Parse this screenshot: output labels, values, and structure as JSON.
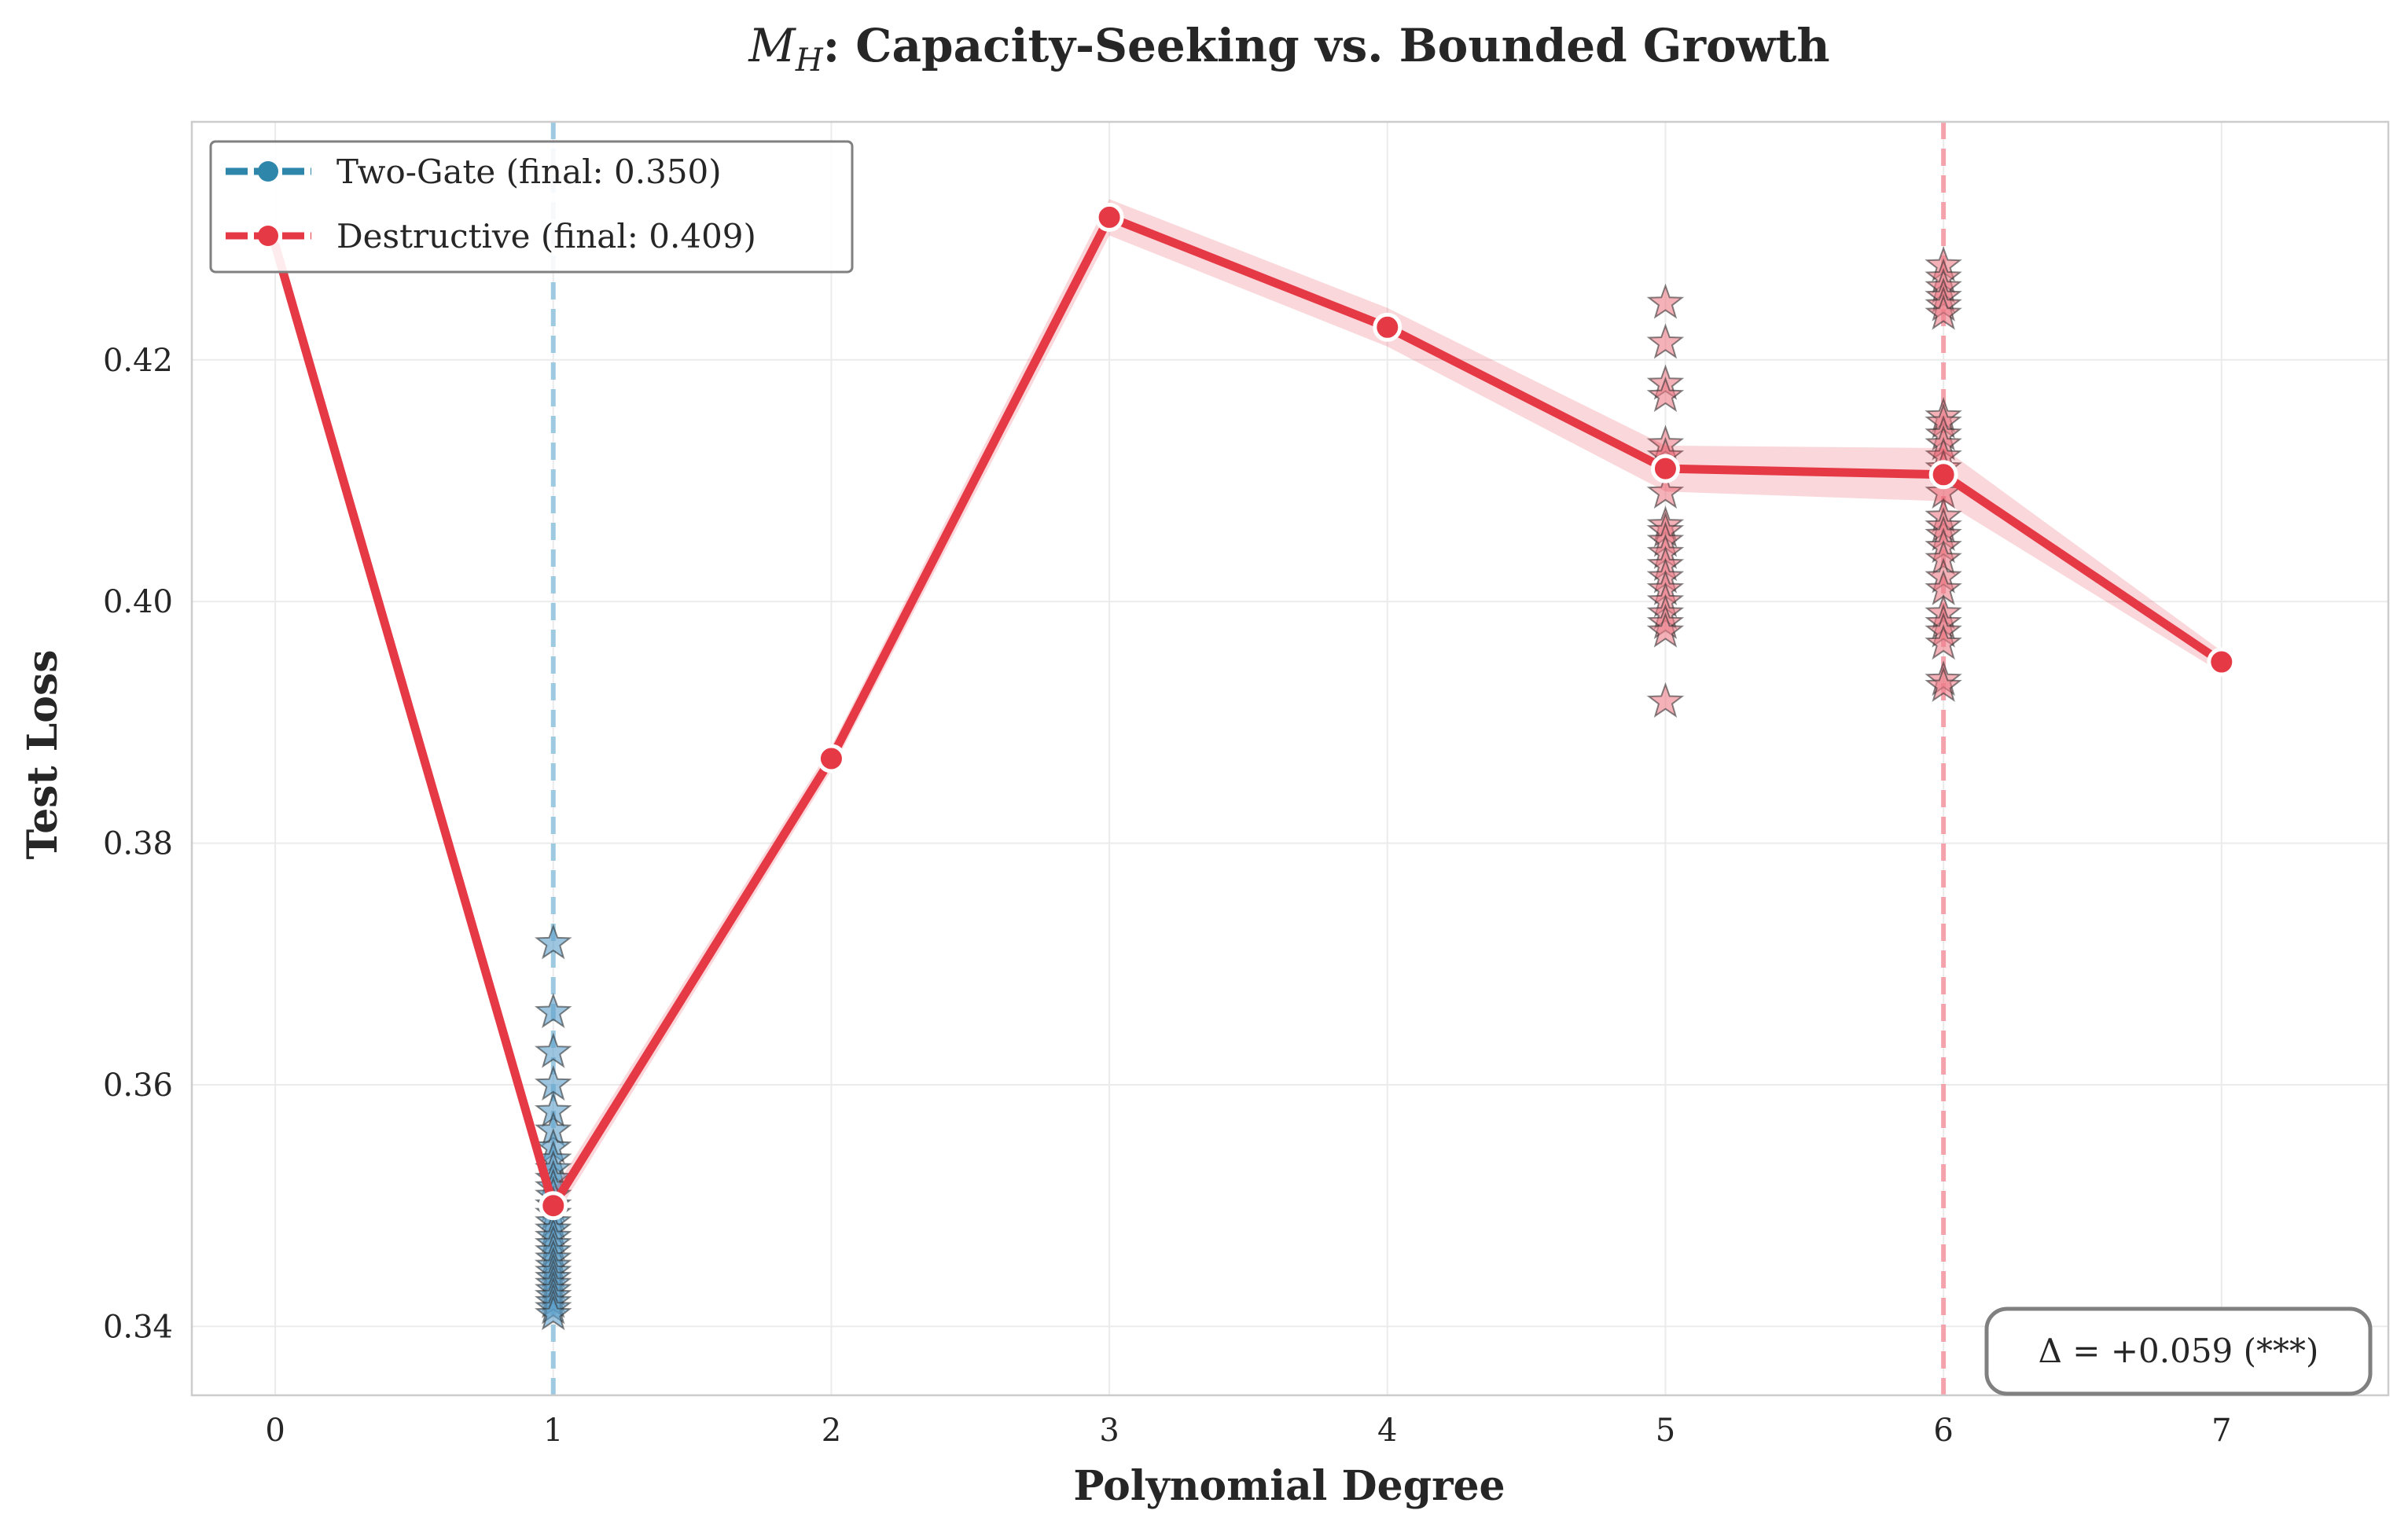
{
  "chart_data": {
    "type": "line",
    "title_prefix": "M",
    "title_subscript": "H",
    "title_rest": ": Capacity-Seeking vs. Bounded Growth",
    "xlabel": "Polynomial Degree",
    "ylabel": "Test Loss",
    "xlim": [
      -0.3,
      7.6
    ],
    "ylim": [
      0.3343,
      0.4397
    ],
    "x_ticks": [
      0,
      1,
      2,
      3,
      4,
      5,
      6,
      7
    ],
    "y_ticks": [
      0.34,
      0.36,
      0.38,
      0.4,
      0.42
    ],
    "y_tick_labels": [
      "0.34",
      "0.36",
      "0.38",
      "0.40",
      "0.42"
    ],
    "grid": true,
    "legend_position": "upper-left",
    "legend": [
      {
        "label": "Two-Gate (final: 0.350)",
        "color": "#2e86ab"
      },
      {
        "label": "Destructive (final: 0.409)",
        "color": "#e63946"
      }
    ],
    "series": [
      {
        "name": "Destructive (final: 0.409)",
        "color": "#e63946",
        "x": [
          0,
          1,
          2,
          3,
          4,
          5,
          6,
          7
        ],
        "y": [
          0.4295,
          0.35,
          0.387,
          0.4318,
          0.4227,
          0.411,
          0.4105,
          0.395
        ],
        "band": [
          0.0004,
          0.0006,
          0.0004,
          0.0009,
          0.001,
          0.0013,
          0.0016,
          0.0003
        ]
      },
      {
        "name": "Two-Gate (final: 0.350)",
        "color": "#2e86ab",
        "x": [
          1
        ],
        "y": [
          0.35
        ]
      }
    ],
    "vlines": [
      {
        "x": 1,
        "color": "#9ecae1"
      },
      {
        "x": 6,
        "color": "#f4a3ad"
      }
    ],
    "star_markers": [
      {
        "x": 1,
        "color": "#5b9ec9",
        "y": [
          0.3717,
          0.366,
          0.3627,
          0.36,
          0.3578,
          0.3562,
          0.3548,
          0.3538,
          0.353,
          0.3522,
          0.3515,
          0.3508,
          0.35,
          0.3493,
          0.3486,
          0.348,
          0.3474,
          0.3468,
          0.3462,
          0.3456,
          0.345,
          0.3445,
          0.344,
          0.3435,
          0.343,
          0.3425,
          0.342,
          0.3415,
          0.341
        ]
      },
      {
        "x": 5,
        "color": "#ec7d88",
        "y": [
          0.4247,
          0.4214,
          0.418,
          0.417,
          0.413,
          0.412,
          0.409,
          0.4063,
          0.4058,
          0.405,
          0.404,
          0.403,
          0.402,
          0.401,
          0.4,
          0.399,
          0.3982,
          0.3975,
          0.3917
        ]
      },
      {
        "x": 6,
        "color": "#ec7d88",
        "y": [
          0.4278,
          0.4268,
          0.426,
          0.4252,
          0.4245,
          0.4238,
          0.4153,
          0.4148,
          0.4138,
          0.413,
          0.412,
          0.411,
          0.409,
          0.407,
          0.4062,
          0.4055,
          0.4045,
          0.4035,
          0.402,
          0.401,
          0.399,
          0.3982,
          0.3975,
          0.3965,
          0.3935,
          0.393
        ]
      }
    ],
    "annotation": "Δ = +0.059 (***)"
  }
}
